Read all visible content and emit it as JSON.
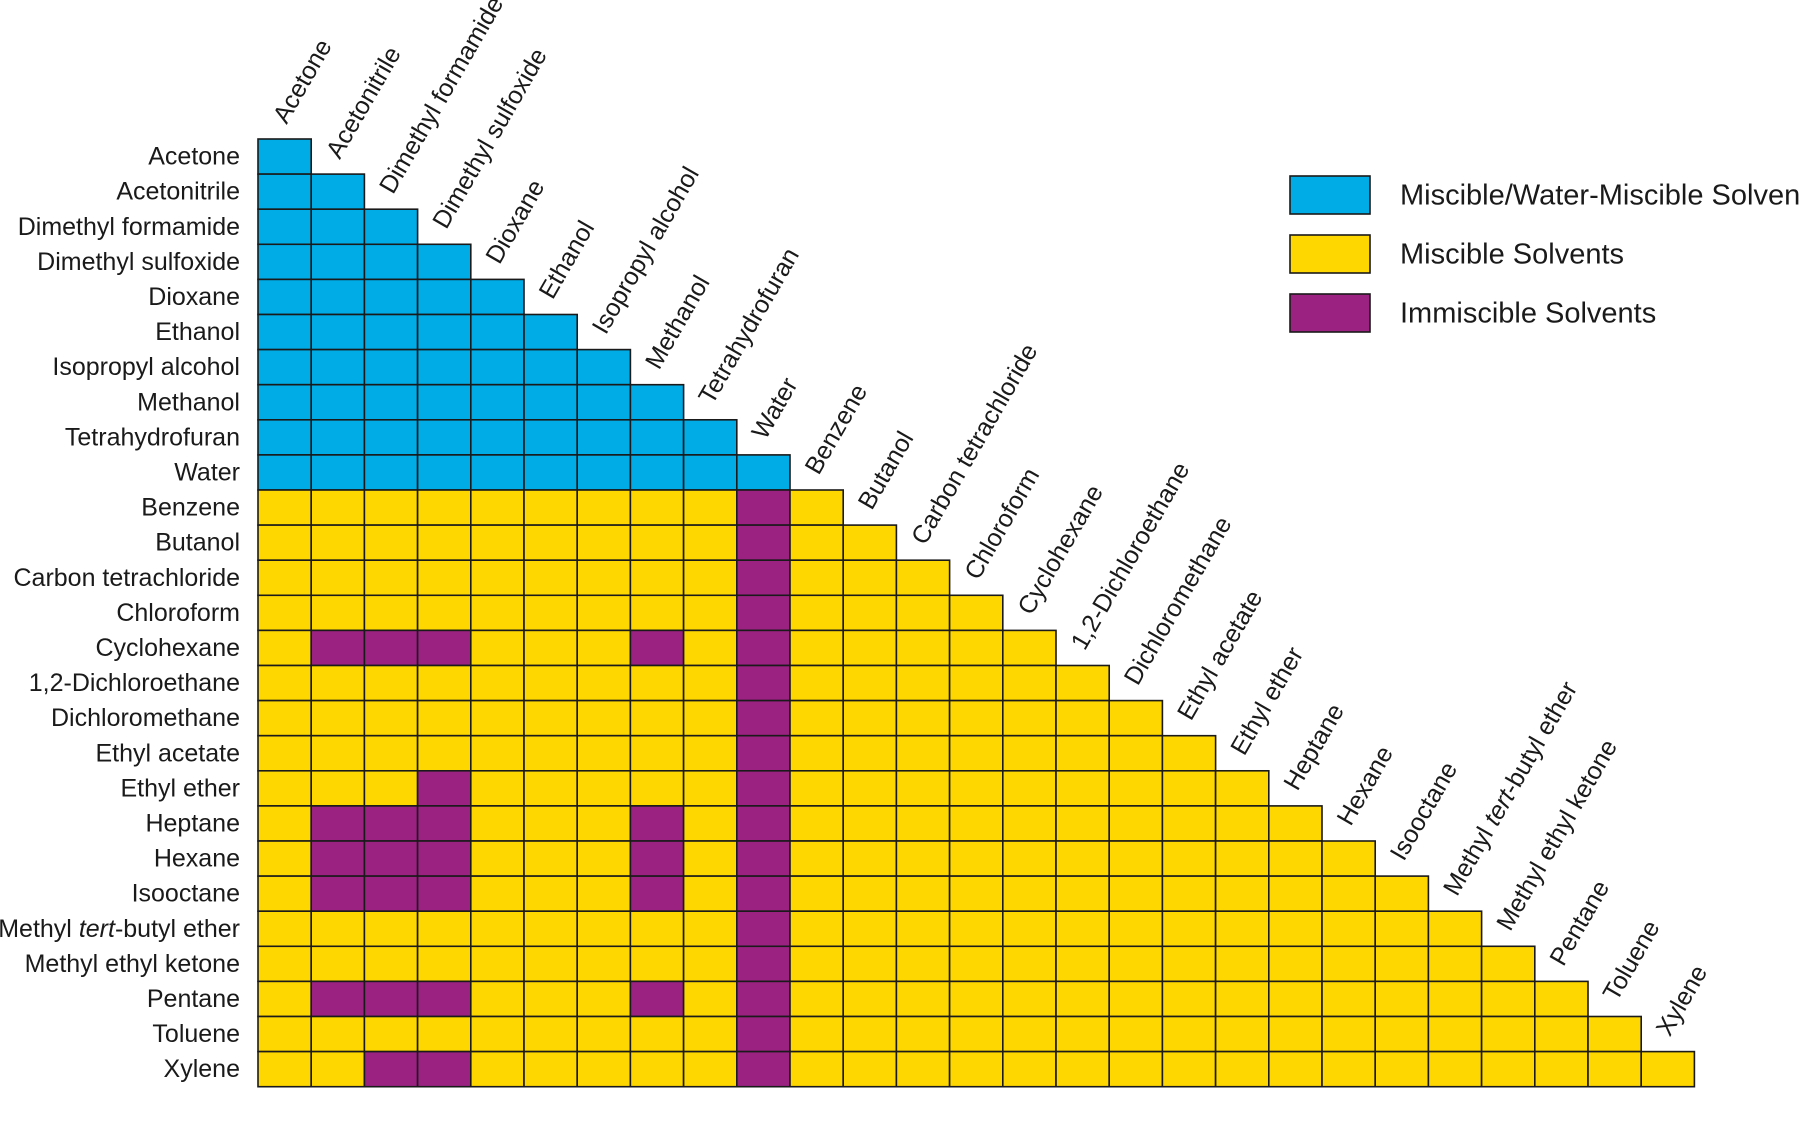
{
  "chart_data": {
    "type": "heatmap",
    "solvents": [
      "Acetone",
      "Acetonitrile",
      "Dimethyl formamide",
      "Dimethyl sulfoxide",
      "Dioxane",
      "Ethanol",
      "Isopropyl alcohol",
      "Methanol",
      "Tetrahydrofuran",
      "Water",
      "Benzene",
      "Butanol",
      "Carbon tetrachloride",
      "Chloroform",
      "Cyclohexane",
      "1,2-Dichloroethane",
      "Dichloromethane",
      "Ethyl acetate",
      "Ethyl ether",
      "Heptane",
      "Hexane",
      "Isooctane",
      "Methyl tert-butyl ether",
      "Methyl ethyl ketone",
      "Pentane",
      "Toluene",
      "Xylene"
    ],
    "row_labels": [
      {
        "pre": "Acetone",
        "it": "",
        "post": ""
      },
      {
        "pre": "Acetonitrile",
        "it": "",
        "post": ""
      },
      {
        "pre": "Dimethyl formamide",
        "it": "",
        "post": ""
      },
      {
        "pre": "Dimethyl sulfoxide",
        "it": "",
        "post": ""
      },
      {
        "pre": "Dioxane",
        "it": "",
        "post": ""
      },
      {
        "pre": "Ethanol",
        "it": "",
        "post": ""
      },
      {
        "pre": "Isopropyl alcohol",
        "it": "",
        "post": ""
      },
      {
        "pre": "Methanol",
        "it": "",
        "post": ""
      },
      {
        "pre": "Tetrahydrofuran",
        "it": "",
        "post": ""
      },
      {
        "pre": "Water",
        "it": "",
        "post": ""
      },
      {
        "pre": "Benzene",
        "it": "",
        "post": ""
      },
      {
        "pre": "Butanol",
        "it": "",
        "post": ""
      },
      {
        "pre": "Carbon tetrachloride",
        "it": "",
        "post": ""
      },
      {
        "pre": "Chloroform",
        "it": "",
        "post": ""
      },
      {
        "pre": "Cyclohexane",
        "it": "",
        "post": ""
      },
      {
        "pre": "1,2-Dichloroethane",
        "it": "",
        "post": ""
      },
      {
        "pre": "Dichloromethane",
        "it": "",
        "post": ""
      },
      {
        "pre": "Ethyl acetate",
        "it": "",
        "post": ""
      },
      {
        "pre": "Ethyl ether",
        "it": "",
        "post": ""
      },
      {
        "pre": "Heptane",
        "it": "",
        "post": ""
      },
      {
        "pre": "Hexane",
        "it": "",
        "post": ""
      },
      {
        "pre": "Isooctane",
        "it": "",
        "post": ""
      },
      {
        "pre": "Methyl ",
        "it": "tert",
        "post": "-butyl ether"
      },
      {
        "pre": "Methyl ethyl ketone",
        "it": "",
        "post": ""
      },
      {
        "pre": "Pentane",
        "it": "",
        "post": ""
      },
      {
        "pre": "Toluene",
        "it": "",
        "post": ""
      },
      {
        "pre": "Xylene",
        "it": "",
        "post": ""
      }
    ],
    "categories": {
      "W": {
        "label": "Miscible/Water-Miscible Solvents",
        "color": "#00ace6"
      },
      "M": {
        "label": "Miscible Solvents",
        "color": "#ffd700"
      },
      "I": {
        "label": "Immiscible Solvents",
        "color": "#9c2282"
      }
    },
    "legend_order": [
      "W",
      "M",
      "I"
    ],
    "legend_position": "top-right",
    "matrix": [
      "W",
      "WW",
      "WWW",
      "WWWW",
      "WWWWW",
      "WWWWWW",
      "WWWWWWW",
      "WWWWWWWW",
      "WWWWWWWWW",
      "WWWWWWWWWW",
      "MMMMMMMMMIM",
      "MMMMMMMMMIMM",
      "MMMMMMMMMIMMM",
      "MMMMMMMMMIMMMM",
      "MIIIMMMIMIMMMMM",
      "MMMMMMMMMIMMMMMM",
      "MMMMMMMMMIMMMMMMM",
      "MMMMMMMMMIMMMMMMMM",
      "MMMIMMMMMIMMMMMMMMM",
      "MIIIMMMIMIMMMMMMMMMM",
      "MIIIMMMIMIMMMMMMMMMMM",
      "MIIIMMMIMIMMMMMMMMMMMM",
      "MMMMMMMMMIMMMMMMMMMMMMM",
      "MMMMMMMMMIMMMMMMMMMMMMMM",
      "MIIIMMMIMIMMMMMMMMMMMMMMM",
      "MMMMMMMMMIMMMMMMMMMMMMMMMM",
      "MMIIMMMMMIMMMMMMMMMMMMMMMMM"
    ]
  }
}
